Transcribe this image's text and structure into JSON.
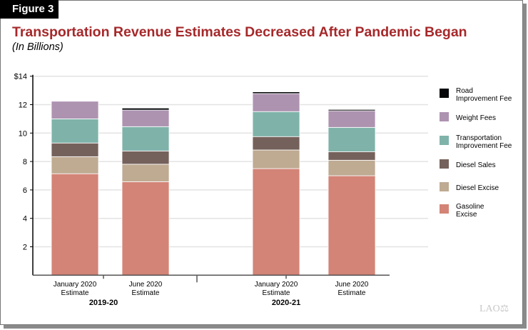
{
  "figure_label": "Figure 3",
  "logo": "LAO",
  "chart_data": {
    "type": "bar",
    "stacked": true,
    "title": "Transportation Revenue Estimates Decreased After Pandemic Began",
    "subtitle": "(In Billions)",
    "ylim": [
      0,
      14
    ],
    "yticks": [
      2,
      4,
      6,
      8,
      10,
      12,
      14
    ],
    "ytick_labels": [
      "2",
      "4",
      "6",
      "8",
      "10",
      "12",
      "$14"
    ],
    "grid": true,
    "legend_placement": "right",
    "groups": [
      {
        "label": "2019-20",
        "categories": [
          "January 2020\nEstimate",
          "June 2020\nEstimate"
        ]
      },
      {
        "label": "2020-21",
        "categories": [
          "January 2020\nEstimate",
          "June 2020\nEstimate"
        ]
      }
    ],
    "series": [
      {
        "name": "Gasoline Excise",
        "color": "#d38476",
        "values": [
          7.14,
          6.58,
          7.5,
          7.0
        ]
      },
      {
        "name": "Diesel Excise",
        "color": "#bfaa92",
        "values": [
          1.2,
          1.23,
          1.31,
          1.09
        ]
      },
      {
        "name": "Diesel Sales",
        "color": "#75615b",
        "values": [
          0.96,
          0.93,
          0.94,
          0.6
        ]
      },
      {
        "name": "Transportation Improvement Fee",
        "color": "#7fb3aa",
        "values": [
          1.7,
          1.71,
          1.76,
          1.71
        ]
      },
      {
        "name": "Weight Fees",
        "color": "#ae93b1",
        "values": [
          1.24,
          1.17,
          1.27,
          1.17
        ]
      },
      {
        "name": "Road Improvement Fee",
        "color": "#050708",
        "values": [
          0.0,
          0.14,
          0.12,
          0.09
        ]
      }
    ]
  }
}
